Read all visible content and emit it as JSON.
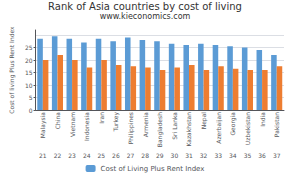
{
  "chart_data": {
    "type": "bar",
    "title": "Rank of Asia countries by cost of living",
    "subtitle": "www.kieconomics.com",
    "categories": [
      "Malaysia",
      "China",
      "Vietnam",
      "Indonesia",
      "Iran",
      "Turkey",
      "Philippines",
      "Armenia",
      "Bangladesh",
      "Sri Lanka",
      "Kazakhstan",
      "Nepal",
      "Azerbaijan",
      "Georgia",
      "Uzbekistan",
      "India",
      "Pakistan"
    ],
    "ranks": [
      21,
      22,
      23,
      24,
      25,
      26,
      27,
      28,
      29,
      30,
      31,
      32,
      33,
      34,
      35,
      36,
      37
    ],
    "series": [
      {
        "name": "Cost of Living Plus Rent Index",
        "color": "#5b9bd5",
        "values": [
          28.5,
          29.5,
          28.5,
          27,
          28.5,
          27.5,
          29,
          28,
          27.5,
          26.5,
          26,
          26.5,
          26,
          25.5,
          25,
          24,
          22
        ]
      },
      {
        "color": "#ed7d31",
        "values": [
          20,
          22,
          20,
          17,
          20,
          18,
          17.5,
          17,
          16,
          17,
          18,
          16,
          17.5,
          16.5,
          16,
          16,
          17.5
        ]
      }
    ],
    "ylabel": "Cost of living Plus Rent Index",
    "ylim": [
      0,
      32
    ],
    "yticks": [
      0,
      5,
      10,
      15,
      20,
      25,
      30
    ],
    "grid": true,
    "legend": "bottom"
  }
}
